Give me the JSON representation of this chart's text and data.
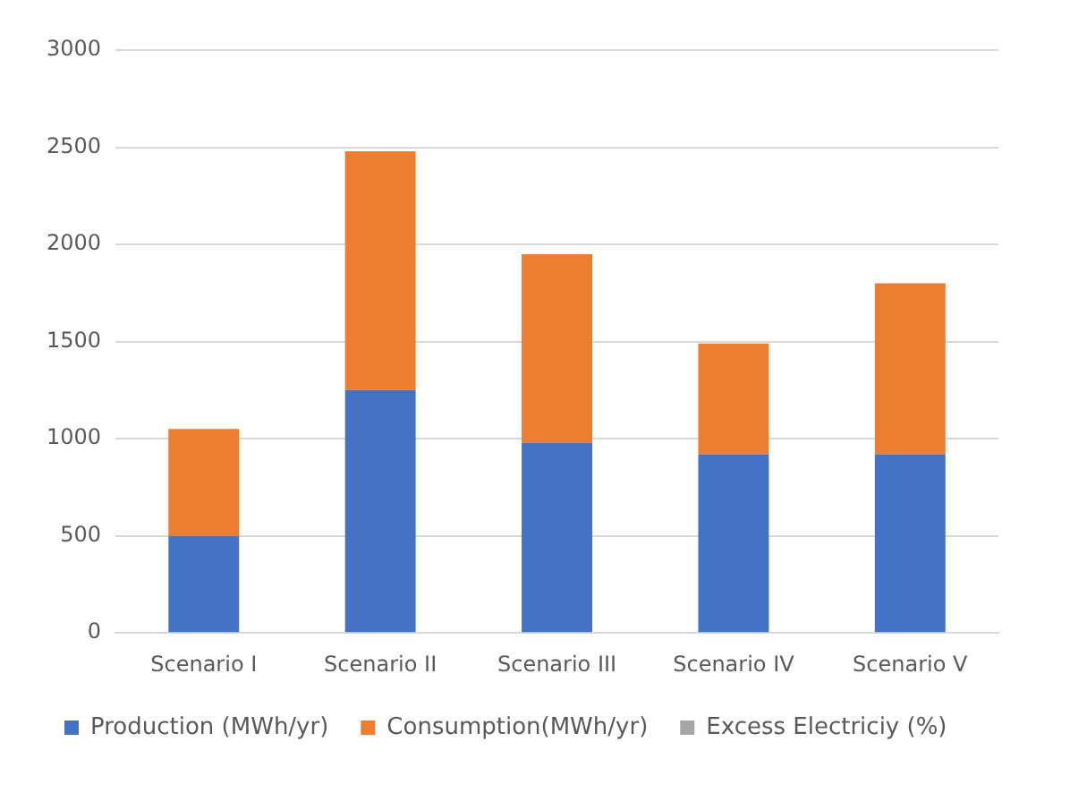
{
  "chart_data": {
    "type": "bar",
    "stacked": true,
    "categories": [
      "Scenario I",
      "Scenario II",
      "Scenario III",
      "Scenario IV",
      "Scenario V"
    ],
    "series": [
      {
        "name": "Production (MWh/yr)",
        "color": "#4472c4",
        "values": [
          500,
          1250,
          980,
          920,
          920
        ]
      },
      {
        "name": "Consumption(MWh/yr)",
        "color": "#ed7d31",
        "values": [
          550,
          1230,
          970,
          570,
          880
        ]
      },
      {
        "name": "Excess Electriciy (%)",
        "color": "#a5a5a5",
        "values": [
          null,
          null,
          null,
          null,
          null
        ]
      }
    ],
    "ylim": [
      0,
      3000
    ],
    "yticks": [
      0,
      500,
      1000,
      1500,
      2000,
      2500,
      3000
    ],
    "grid": "y",
    "legend": "bottom"
  }
}
